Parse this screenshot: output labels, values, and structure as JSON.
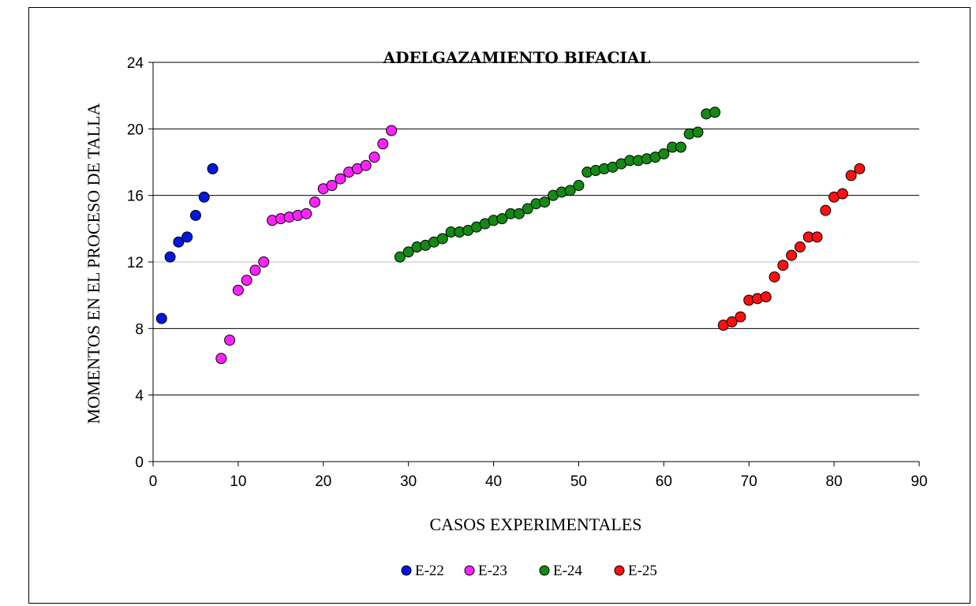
{
  "chart_data": {
    "type": "scatter",
    "title": "ADELGAZAMIENTO BIFACIAL",
    "xlabel": "CASOS EXPERIMENTALES",
    "ylabel": "MOMENTOS EN EL PROCESO DE TALLA",
    "xlim": [
      0,
      90
    ],
    "ylim": [
      0,
      24
    ],
    "xticks": [
      0,
      10,
      20,
      30,
      40,
      50,
      60,
      70,
      80,
      90
    ],
    "yticks": [
      0,
      4,
      8,
      12,
      16,
      20,
      24
    ],
    "grid": "horizontal",
    "legend_position": "bottom",
    "series": [
      {
        "name": "E-22",
        "color": "#0018e0",
        "x": [
          1,
          2,
          3,
          4,
          5,
          6,
          7
        ],
        "y": [
          8.6,
          12.3,
          13.2,
          13.5,
          14.8,
          15.9,
          17.6
        ]
      },
      {
        "name": "E-23",
        "color": "#ff22ff",
        "x": [
          8,
          9,
          10,
          11,
          12,
          13,
          14,
          15,
          16,
          17,
          18,
          19,
          20,
          21,
          22,
          23,
          24,
          25,
          26,
          27,
          28
        ],
        "y": [
          6.2,
          7.3,
          10.3,
          10.9,
          11.5,
          12.0,
          14.5,
          14.6,
          14.7,
          14.8,
          14.9,
          15.6,
          16.4,
          16.6,
          17.0,
          17.4,
          17.6,
          17.8,
          18.3,
          19.1,
          19.9
        ]
      },
      {
        "name": "E-24",
        "color": "#138a13",
        "x": [
          29,
          30,
          31,
          32,
          33,
          34,
          35,
          36,
          37,
          38,
          39,
          40,
          41,
          42,
          43,
          44,
          45,
          46,
          47,
          48,
          49,
          50,
          51,
          52,
          53,
          54,
          55,
          56,
          57,
          58,
          59,
          60,
          61,
          62,
          63,
          64,
          65,
          66
        ],
        "y": [
          12.3,
          12.6,
          12.9,
          13.0,
          13.2,
          13.4,
          13.8,
          13.8,
          13.9,
          14.1,
          14.3,
          14.5,
          14.6,
          14.9,
          14.9,
          15.2,
          15.5,
          15.6,
          16.0,
          16.2,
          16.3,
          16.6,
          17.4,
          17.5,
          17.6,
          17.7,
          17.9,
          18.1,
          18.1,
          18.2,
          18.3,
          18.5,
          18.9,
          18.9,
          19.7,
          19.8,
          20.9,
          21.0
        ]
      },
      {
        "name": "E-25",
        "color": "#ff1010",
        "x": [
          67,
          68,
          69,
          70,
          71,
          72,
          73,
          74,
          75,
          76,
          77,
          78,
          79,
          80,
          81,
          82,
          83
        ],
        "y": [
          8.2,
          8.4,
          8.7,
          9.7,
          9.8,
          9.9,
          11.1,
          11.8,
          12.4,
          12.9,
          13.5,
          13.5,
          15.1,
          15.9,
          16.1,
          17.2,
          17.6
        ]
      }
    ]
  }
}
